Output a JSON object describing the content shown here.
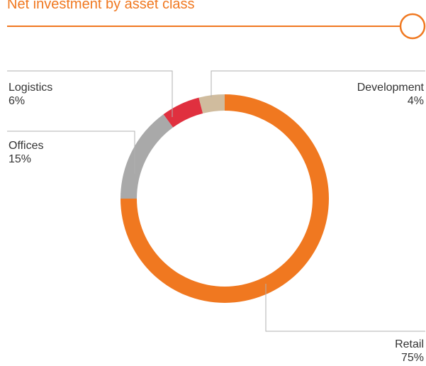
{
  "chart_data": {
    "type": "donut",
    "title": "Net investment by asset class",
    "categories": [
      "Retail",
      "Offices",
      "Logistics",
      "Development"
    ],
    "values": [
      75,
      15,
      6,
      4
    ],
    "value_labels": [
      "75%",
      "15%",
      "6%",
      "4%"
    ],
    "colors": [
      "#f07820",
      "#a9a9a9",
      "#e0303f",
      "#d0bc9e"
    ]
  }
}
